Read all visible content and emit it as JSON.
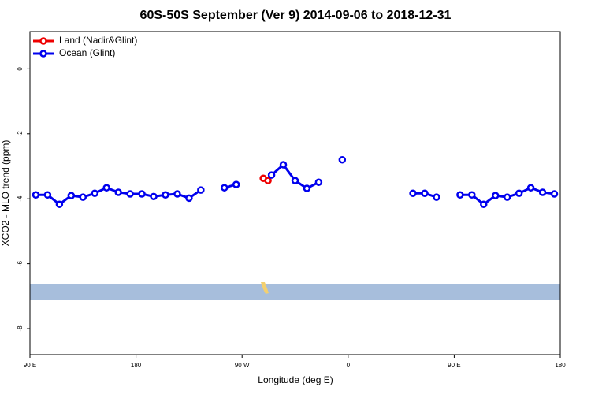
{
  "chart_data": {
    "type": "line",
    "title": "60S-50S September (Ver 9)   2014-09-06 to 2018-12-31",
    "x_label": "Longitude (deg E)",
    "y_label": "XCO2 - MLO trend (ppm)",
    "xlim": [
      90,
      540
    ],
    "xticks": [
      {
        "value": 90,
        "label": "90 E"
      },
      {
        "value": 180,
        "label": "180"
      },
      {
        "value": 270,
        "label": "90 W"
      },
      {
        "value": 360,
        "label": "0"
      },
      {
        "value": 450,
        "label": "90 E"
      },
      {
        "value": 540,
        "label": "180"
      }
    ],
    "ylim": [
      -8.8,
      1.15
    ],
    "yticks": [
      0,
      -2,
      -4,
      -6,
      -8
    ],
    "legend": "top-left",
    "series": [
      {
        "name": "Land (Nadir&Glint)",
        "color": "#ee0000",
        "x": [
          288,
          292
        ],
        "values": [
          -3.37,
          -3.44
        ]
      },
      {
        "name": "Ocean (Glint)",
        "color": "#0000ee",
        "x": [
          95,
          105,
          115,
          125,
          135,
          145,
          155,
          165,
          175,
          185,
          195,
          205,
          215,
          225,
          235,
          245,
          255,
          265,
          275,
          295,
          305,
          315,
          325,
          335,
          345,
          355,
          365,
          415,
          425,
          435,
          445,
          455,
          465,
          475,
          485,
          495,
          505,
          515,
          525,
          535
        ],
        "values": [
          -3.88,
          -3.88,
          -4.17,
          -3.9,
          -3.95,
          -3.83,
          -3.66,
          -3.8,
          -3.85,
          -3.85,
          -3.93,
          -3.88,
          -3.85,
          -3.98,
          -3.73,
          null,
          -3.66,
          -3.56,
          null,
          -3.27,
          -2.95,
          -3.44,
          -3.68,
          -3.49,
          null,
          -2.8,
          null,
          -3.83,
          -3.83,
          -3.95,
          null,
          -3.88,
          -3.88,
          -4.17,
          -3.9,
          -3.95,
          -3.83,
          -3.66,
          -3.8,
          -3.85
        ]
      }
    ]
  }
}
